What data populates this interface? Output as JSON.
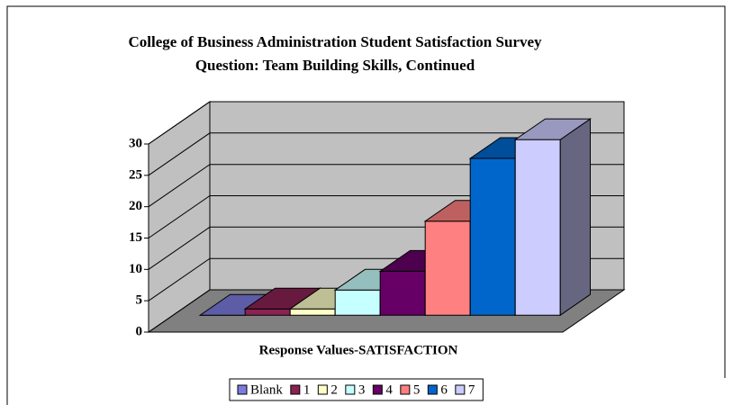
{
  "chart_data": {
    "type": "bar3d",
    "title": "College of Business Administration Student Satisfaction Survey",
    "subtitle": "Question: Team Building Skills, Continued",
    "x_label": "Response Values-SATISFACTION",
    "categories": [
      null
    ],
    "series": [
      {
        "name": "Blank",
        "color": "#7b7bde",
        "values": [
          0
        ]
      },
      {
        "name": "1",
        "color": "#8b2252",
        "values": [
          1
        ]
      },
      {
        "name": "2",
        "color": "#ffffc6",
        "values": [
          1
        ]
      },
      {
        "name": "3",
        "color": "#c6ffff",
        "values": [
          4
        ]
      },
      {
        "name": "4",
        "color": "#660066",
        "values": [
          7
        ]
      },
      {
        "name": "5",
        "color": "#ff8080",
        "values": [
          15
        ]
      },
      {
        "name": "6",
        "color": "#0066cc",
        "values": [
          25
        ]
      },
      {
        "name": "7",
        "color": "#ccccff",
        "values": [
          28
        ]
      }
    ],
    "ylim": [
      0,
      30
    ],
    "yticks": [
      0,
      5,
      10,
      15,
      20,
      25,
      30
    ],
    "grid": true,
    "legend": "bottom"
  }
}
